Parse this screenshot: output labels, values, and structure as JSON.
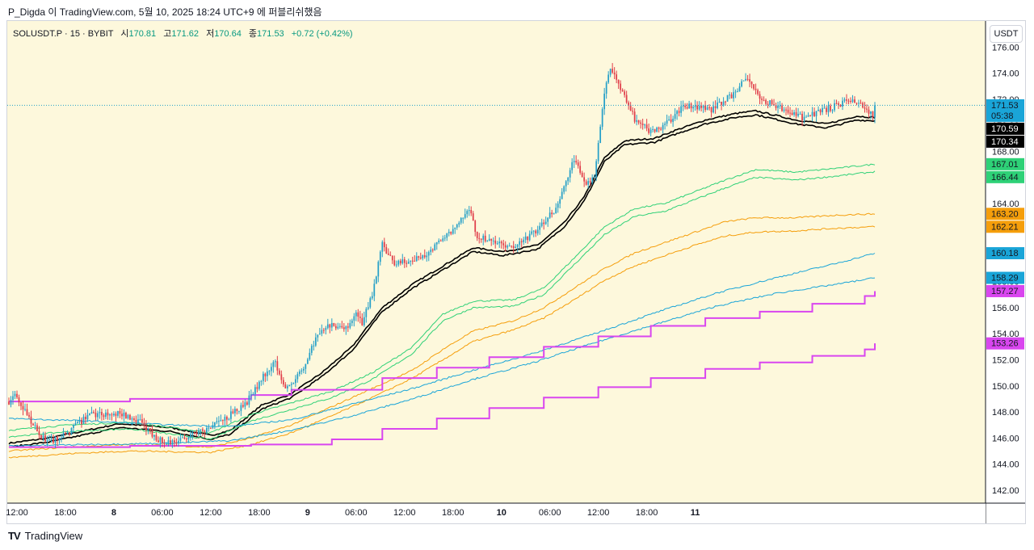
{
  "header": {
    "attribution": "P_Digda 이 TradingView.com, 5월 10, 2025 18:24 UTC+9 에 퍼블리쉬했음"
  },
  "legend": {
    "symbol": "SOLUSDT.P · 15 · BYBIT",
    "open_label": "시",
    "open": "170.81",
    "high_label": "고",
    "high": "171.62",
    "low_label": "저",
    "low": "170.64",
    "close_label": "종",
    "close": "171.53",
    "change": "+0.72 (+0.42%)"
  },
  "currency_button": "USDT",
  "footer": {
    "brand": "TradingView",
    "logo": "TV"
  },
  "colors": {
    "background": "#fdf8dc",
    "up_candle": "#26a0c8",
    "down_candle": "#e03e4a",
    "black_band": "#000000",
    "green_band": "#2ed177",
    "orange_band": "#f59e0b",
    "cyan_band": "#1aa5d8",
    "magenta_band": "#d946ef"
  },
  "chart_data": {
    "type": "candlestick",
    "symbol": "SOLUSDT.P",
    "interval": "15",
    "exchange": "BYBIT",
    "ylim": [
      141,
      178
    ],
    "y_ticks": [
      "142.00",
      "144.00",
      "146.00",
      "148.00",
      "150.00",
      "152.00",
      "154.00",
      "156.00",
      "158.00",
      "160.00",
      "162.00",
      "164.00",
      "166.00",
      "168.00",
      "170.00",
      "172.00",
      "174.00",
      "176.00"
    ],
    "x_ticks": [
      "12:00",
      "18:00",
      "8",
      "06:00",
      "12:00",
      "18:00",
      "9",
      "06:00",
      "12:00",
      "18:00",
      "10",
      "06:00",
      "12:00",
      "18:00",
      "11"
    ],
    "x_tick_bold": [
      "8",
      "9",
      "10",
      "11"
    ],
    "price_keypoints": [
      [
        0,
        148.8
      ],
      [
        3,
        149.3
      ],
      [
        10,
        147.5
      ],
      [
        16,
        146.0
      ],
      [
        22,
        145.8
      ],
      [
        30,
        146.5
      ],
      [
        40,
        147.8
      ],
      [
        55,
        147.9
      ],
      [
        65,
        147.2
      ],
      [
        72,
        146.0
      ],
      [
        80,
        145.6
      ],
      [
        88,
        146.1
      ],
      [
        100,
        146.8
      ],
      [
        110,
        147.8
      ],
      [
        118,
        148.8
      ],
      [
        125,
        150.5
      ],
      [
        132,
        151.8
      ],
      [
        136,
        150.0
      ],
      [
        140,
        150.2
      ],
      [
        146,
        151.5
      ],
      [
        152,
        153.5
      ],
      [
        158,
        154.8
      ],
      [
        163,
        154.3
      ],
      [
        168,
        154.5
      ],
      [
        172,
        155.5
      ],
      [
        175,
        154.8
      ],
      [
        180,
        157.0
      ],
      [
        185,
        161.0
      ],
      [
        190,
        159.5
      ],
      [
        200,
        159.5
      ],
      [
        210,
        160.5
      ],
      [
        215,
        161.5
      ],
      [
        220,
        162.0
      ],
      [
        228,
        163.5
      ],
      [
        232,
        161.5
      ],
      [
        240,
        161.0
      ],
      [
        250,
        160.5
      ],
      [
        258,
        161.5
      ],
      [
        265,
        162.5
      ],
      [
        272,
        163.8
      ],
      [
        280,
        167.5
      ],
      [
        285,
        165.5
      ],
      [
        290,
        166.0
      ],
      [
        295,
        172.5
      ],
      [
        298,
        174.5
      ],
      [
        302,
        173.2
      ],
      [
        310,
        170.5
      ],
      [
        318,
        169.5
      ],
      [
        325,
        170.0
      ],
      [
        333,
        171.3
      ],
      [
        340,
        171.5
      ],
      [
        348,
        171.2
      ],
      [
        355,
        172.0
      ],
      [
        360,
        172.5
      ],
      [
        365,
        173.6
      ],
      [
        372,
        172.0
      ],
      [
        380,
        171.5
      ],
      [
        390,
        170.8
      ],
      [
        395,
        170.5
      ],
      [
        400,
        171.0
      ],
      [
        410,
        171.5
      ],
      [
        418,
        172.0
      ],
      [
        422,
        171.5
      ],
      [
        428,
        170.81
      ],
      [
        429,
        171.53
      ]
    ],
    "series": [
      {
        "name": "",
        "color": "black",
        "values": [
          [
            0,
            145.6
          ],
          [
            20,
            146.0
          ],
          [
            55,
            147.1
          ],
          [
            80,
            146.8
          ],
          [
            100,
            146.2
          ],
          [
            110,
            146.6
          ],
          [
            125,
            148.5
          ],
          [
            140,
            149.4
          ],
          [
            155,
            151.0
          ],
          [
            170,
            153.0
          ],
          [
            185,
            156.0
          ],
          [
            200,
            157.8
          ],
          [
            215,
            159.2
          ],
          [
            230,
            160.6
          ],
          [
            245,
            160.3
          ],
          [
            262,
            160.8
          ],
          [
            275,
            162.5
          ],
          [
            285,
            164.5
          ],
          [
            295,
            167.5
          ],
          [
            305,
            168.8
          ],
          [
            320,
            169.0
          ],
          [
            330,
            169.6
          ],
          [
            345,
            170.4
          ],
          [
            360,
            170.9
          ],
          [
            370,
            171.1
          ],
          [
            390,
            170.4
          ],
          [
            405,
            170.1
          ],
          [
            420,
            170.7
          ],
          [
            429,
            170.59
          ]
        ]
      },
      {
        "name": "",
        "color": "black",
        "values": [
          [
            0,
            145.3
          ],
          [
            20,
            145.7
          ],
          [
            55,
            146.8
          ],
          [
            80,
            146.5
          ],
          [
            100,
            145.9
          ],
          [
            110,
            146.3
          ],
          [
            125,
            148.2
          ],
          [
            140,
            149.1
          ],
          [
            155,
            150.7
          ],
          [
            170,
            152.7
          ],
          [
            185,
            155.7
          ],
          [
            200,
            157.5
          ],
          [
            215,
            158.9
          ],
          [
            230,
            160.3
          ],
          [
            245,
            160.0
          ],
          [
            262,
            160.5
          ],
          [
            275,
            162.2
          ],
          [
            285,
            164.2
          ],
          [
            295,
            167.2
          ],
          [
            305,
            168.5
          ],
          [
            320,
            168.7
          ],
          [
            330,
            169.3
          ],
          [
            345,
            170.1
          ],
          [
            360,
            170.6
          ],
          [
            370,
            170.8
          ],
          [
            390,
            170.1
          ],
          [
            405,
            169.8
          ],
          [
            420,
            170.4
          ],
          [
            429,
            170.34
          ]
        ]
      },
      {
        "name": "",
        "color": "green",
        "values": [
          [
            0,
            146.6
          ],
          [
            30,
            147.0
          ],
          [
            60,
            147.2
          ],
          [
            100,
            146.4
          ],
          [
            120,
            147.8
          ],
          [
            140,
            148.7
          ],
          [
            160,
            149.6
          ],
          [
            180,
            151.0
          ],
          [
            200,
            153.0
          ],
          [
            215,
            155.5
          ],
          [
            230,
            156.5
          ],
          [
            250,
            156.6
          ],
          [
            265,
            157.5
          ],
          [
            280,
            159.8
          ],
          [
            295,
            162.2
          ],
          [
            310,
            163.6
          ],
          [
            325,
            164.0
          ],
          [
            340,
            164.9
          ],
          [
            355,
            165.8
          ],
          [
            370,
            166.6
          ],
          [
            390,
            166.4
          ],
          [
            410,
            166.7
          ],
          [
            429,
            167.01
          ]
        ]
      },
      {
        "name": "",
        "color": "green",
        "values": [
          [
            0,
            146.1
          ],
          [
            30,
            146.5
          ],
          [
            60,
            146.7
          ],
          [
            100,
            145.9
          ],
          [
            120,
            147.3
          ],
          [
            140,
            148.2
          ],
          [
            160,
            149.1
          ],
          [
            180,
            150.5
          ],
          [
            200,
            152.5
          ],
          [
            215,
            155.0
          ],
          [
            230,
            156.0
          ],
          [
            250,
            156.1
          ],
          [
            265,
            157.0
          ],
          [
            280,
            159.3
          ],
          [
            295,
            161.6
          ],
          [
            310,
            163.0
          ],
          [
            325,
            163.4
          ],
          [
            340,
            164.3
          ],
          [
            355,
            165.2
          ],
          [
            370,
            166.0
          ],
          [
            390,
            165.8
          ],
          [
            410,
            166.1
          ],
          [
            429,
            166.44
          ]
        ]
      },
      {
        "name": "",
        "color": "orange",
        "values": [
          [
            0,
            145.0
          ],
          [
            30,
            145.3
          ],
          [
            60,
            145.5
          ],
          [
            100,
            145.3
          ],
          [
            120,
            146.0
          ],
          [
            140,
            147.0
          ],
          [
            160,
            148.4
          ],
          [
            180,
            149.8
          ],
          [
            200,
            151.2
          ],
          [
            215,
            152.8
          ],
          [
            230,
            154.2
          ],
          [
            250,
            155.0
          ],
          [
            265,
            156.0
          ],
          [
            280,
            157.5
          ],
          [
            295,
            159.0
          ],
          [
            310,
            160.2
          ],
          [
            325,
            161.0
          ],
          [
            340,
            161.8
          ],
          [
            355,
            162.6
          ],
          [
            370,
            162.9
          ],
          [
            390,
            162.9
          ],
          [
            410,
            163.1
          ],
          [
            429,
            163.2
          ]
        ]
      },
      {
        "name": "",
        "color": "orange",
        "values": [
          [
            0,
            144.5
          ],
          [
            30,
            144.8
          ],
          [
            60,
            145.0
          ],
          [
            100,
            144.9
          ],
          [
            120,
            145.5
          ],
          [
            140,
            146.4
          ],
          [
            160,
            147.7
          ],
          [
            180,
            149.1
          ],
          [
            200,
            150.6
          ],
          [
            215,
            152.0
          ],
          [
            230,
            153.4
          ],
          [
            250,
            154.3
          ],
          [
            265,
            155.2
          ],
          [
            280,
            156.6
          ],
          [
            295,
            158.1
          ],
          [
            310,
            159.2
          ],
          [
            325,
            160.0
          ],
          [
            340,
            160.8
          ],
          [
            355,
            161.5
          ],
          [
            370,
            161.8
          ],
          [
            390,
            161.9
          ],
          [
            410,
            162.1
          ],
          [
            429,
            162.21
          ]
        ]
      },
      {
        "name": "",
        "color": "cyan",
        "values": [
          [
            0,
            147.5
          ],
          [
            40,
            147.3
          ],
          [
            80,
            147.0
          ],
          [
            110,
            146.9
          ],
          [
            140,
            147.4
          ],
          [
            170,
            148.6
          ],
          [
            200,
            149.8
          ],
          [
            230,
            151.2
          ],
          [
            260,
            152.5
          ],
          [
            290,
            154.0
          ],
          [
            320,
            155.6
          ],
          [
            350,
            157.1
          ],
          [
            380,
            158.3
          ],
          [
            410,
            159.4
          ],
          [
            429,
            160.18
          ]
        ]
      },
      {
        "name": "",
        "color": "cyan",
        "values": [
          [
            0,
            145.4
          ],
          [
            40,
            145.5
          ],
          [
            80,
            145.6
          ],
          [
            110,
            145.8
          ],
          [
            140,
            146.6
          ],
          [
            170,
            147.7
          ],
          [
            200,
            149.0
          ],
          [
            230,
            150.5
          ],
          [
            260,
            151.8
          ],
          [
            290,
            153.3
          ],
          [
            320,
            154.7
          ],
          [
            350,
            156.1
          ],
          [
            380,
            157.1
          ],
          [
            410,
            157.8
          ],
          [
            429,
            158.29
          ]
        ]
      },
      {
        "name": "",
        "color": "magenta",
        "type": "step",
        "values": [
          [
            0,
            148.8
          ],
          [
            60,
            149.0
          ],
          [
            120,
            149.3
          ],
          [
            140,
            149.7
          ],
          [
            185,
            150.6
          ],
          [
            212,
            151.4
          ],
          [
            238,
            152.2
          ],
          [
            265,
            153.0
          ],
          [
            292,
            153.8
          ],
          [
            318,
            154.6
          ],
          [
            345,
            155.2
          ],
          [
            372,
            155.7
          ],
          [
            398,
            156.3
          ],
          [
            424,
            156.9
          ],
          [
            429,
            157.27
          ]
        ]
      },
      {
        "name": "",
        "color": "magenta",
        "type": "step",
        "values": [
          [
            0,
            145.3
          ],
          [
            60,
            145.4
          ],
          [
            120,
            145.5
          ],
          [
            160,
            145.9
          ],
          [
            185,
            146.7
          ],
          [
            212,
            147.5
          ],
          [
            238,
            148.3
          ],
          [
            265,
            149.1
          ],
          [
            292,
            149.9
          ],
          [
            318,
            150.6
          ],
          [
            345,
            151.3
          ],
          [
            372,
            151.8
          ],
          [
            398,
            152.3
          ],
          [
            424,
            152.8
          ],
          [
            429,
            153.26
          ]
        ]
      }
    ],
    "price_labels": [
      {
        "text": "171.53",
        "sub": "05:38",
        "value": 171.53,
        "color": "cyan"
      },
      {
        "text": "170.59",
        "value": 170.59,
        "color": "black"
      },
      {
        "text": "170.34",
        "value": 170.34,
        "color": "black"
      },
      {
        "text": "167.01",
        "value": 167.01,
        "color": "green"
      },
      {
        "text": "166.44",
        "value": 166.44,
        "color": "green"
      },
      {
        "text": "163.20",
        "value": 163.2,
        "color": "orange"
      },
      {
        "text": "162.21",
        "value": 162.21,
        "color": "orange"
      },
      {
        "text": "160.18",
        "value": 160.18,
        "color": "cyan"
      },
      {
        "text": "158.29",
        "value": 158.29,
        "color": "cyan"
      },
      {
        "text": "157.27",
        "value": 157.27,
        "color": "magenta"
      },
      {
        "text": "153.26",
        "value": 153.26,
        "color": "magenta"
      }
    ],
    "last_price": 171.53
  }
}
